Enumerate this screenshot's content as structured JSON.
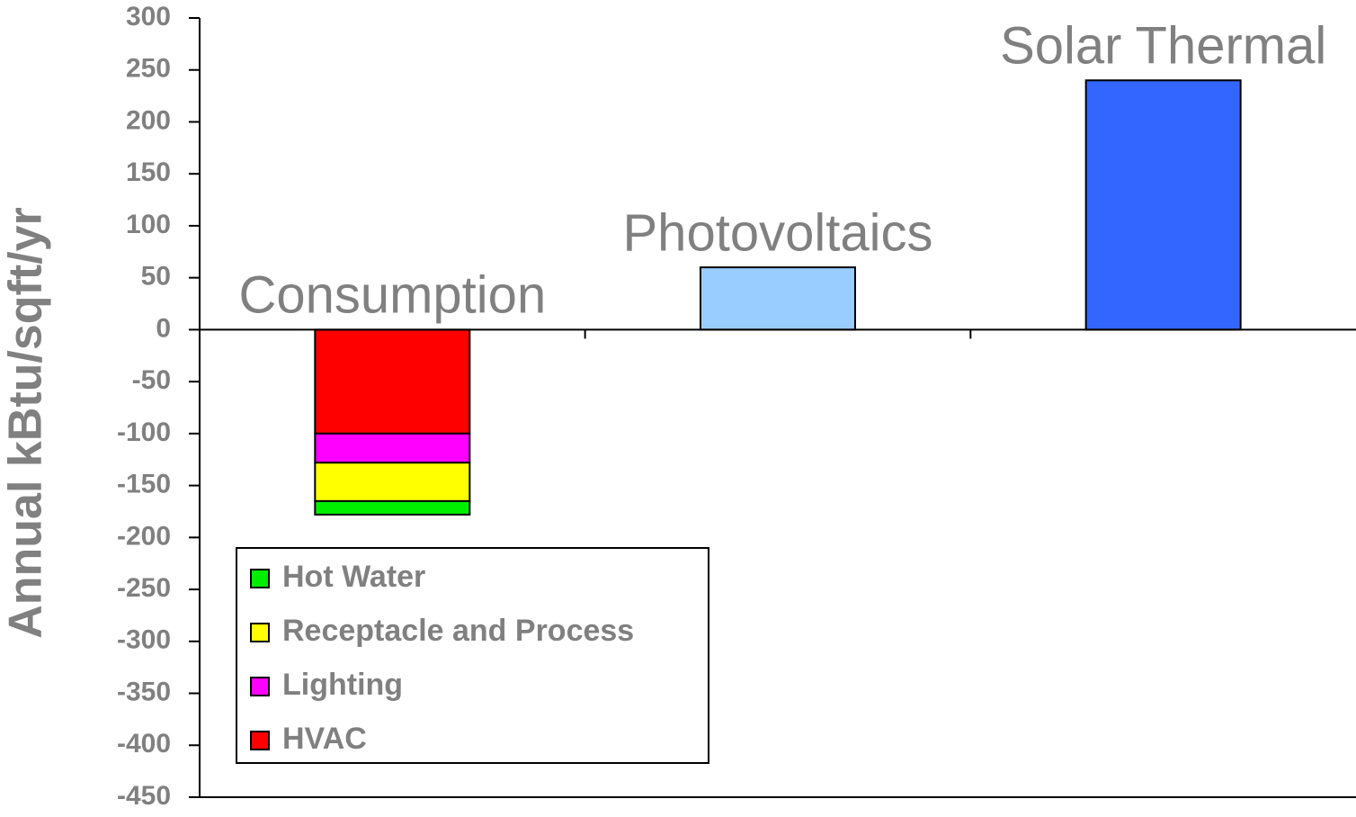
{
  "chart_data": {
    "type": "stacked_bar",
    "y_label": "Annual kBtu/sqft/yr",
    "categories": [
      "Consumption",
      "Photovoltaics",
      "Solar Thermal"
    ],
    "values": [
      null,
      60,
      240
    ],
    "colors": [
      null,
      "#99ccff",
      "#3366ff"
    ],
    "series": [
      {
        "name": "HVAC",
        "color": "#ff0000",
        "values": [
          -100,
          null,
          null
        ]
      },
      {
        "name": "Lighting",
        "color": "#ff00ff",
        "values": [
          -28,
          null,
          null
        ]
      },
      {
        "name": "Receptacle and Process",
        "color": "#ffff00",
        "values": [
          -37,
          null,
          null
        ]
      },
      {
        "name": "Hot Water",
        "color": "#00ee00",
        "values": [
          -13,
          null,
          null
        ]
      }
    ],
    "ylim": [
      -450,
      300
    ],
    "yticks": [
      -450,
      -400,
      -350,
      -300,
      -250,
      -200,
      -150,
      -100,
      -50,
      0,
      50,
      100,
      150,
      200,
      250,
      300
    ],
    "legend": "lower left"
  }
}
